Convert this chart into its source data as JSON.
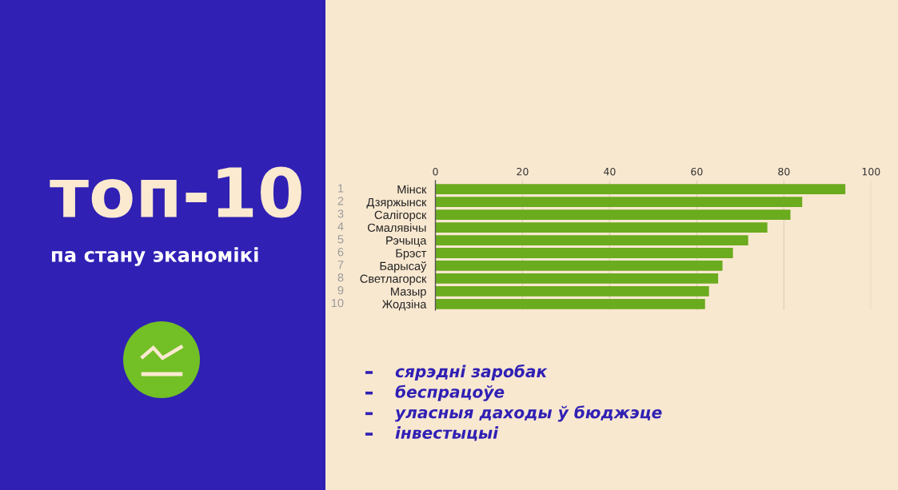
{
  "chart_data": {
    "type": "bar",
    "orientation": "horizontal",
    "title": "топ-10",
    "subtitle": "па стану эканомікі",
    "categories": [
      "Мінск",
      "Дзяржынск",
      "Салігорск",
      "Смалявічы",
      "Рэчыца",
      "Брэст",
      "Барысаў",
      "Светлагорск",
      "Мазыр",
      "Жодзіна"
    ],
    "values": [
      94.1,
      84.2,
      81.5,
      76.2,
      71.8,
      68.3,
      65.9,
      64.9,
      62.8,
      61.9
    ],
    "color": "#6bab1e",
    "xlim": [
      0,
      100
    ],
    "xticks": [
      0,
      20,
      40,
      60,
      80,
      100
    ],
    "grid": "x",
    "annotations": [
      "1",
      "2",
      "3",
      "4",
      "5",
      "6",
      "7",
      "8",
      "9",
      "10",
      "сярэдні заробак",
      "беспрацоўе",
      "уласныя даходы ў бюджэце",
      "інвестыцыі"
    ]
  }
}
